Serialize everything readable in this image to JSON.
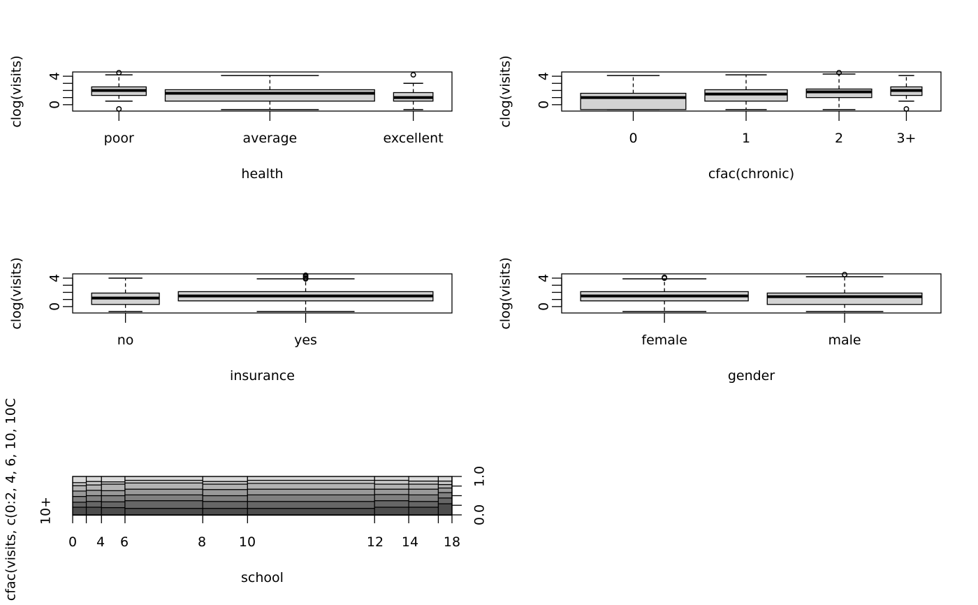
{
  "chart_data": [
    {
      "type": "boxplot",
      "xlabel": "health",
      "ylabel": "clog(visits)",
      "yticks": [
        0,
        4
      ],
      "ylim": [
        -0.9,
        4.6
      ],
      "categories": [
        "poor",
        "average",
        "excellent"
      ],
      "widths": [
        0.18,
        0.69,
        0.13
      ],
      "boxes": [
        {
          "whisker_low": 0.5,
          "q1": 1.3,
          "median": 2.0,
          "q3": 2.5,
          "whisker_high": 4.2,
          "outliers": [
            4.5,
            -0.6
          ]
        },
        {
          "whisker_low": -0.69,
          "q1": 0.5,
          "median": 1.6,
          "q3": 2.1,
          "whisker_high": 4.1,
          "outliers": []
        },
        {
          "whisker_low": -0.69,
          "q1": 0.5,
          "median": 1.0,
          "q3": 1.7,
          "whisker_high": 3.0,
          "outliers": [
            4.2
          ]
        }
      ]
    },
    {
      "type": "boxplot",
      "xlabel": "cfac(chronic)",
      "ylabel": "clog(visits)",
      "yticks": [
        0,
        4
      ],
      "ylim": [
        -0.9,
        4.6
      ],
      "categories": [
        "0",
        "1",
        "2",
        "3+"
      ],
      "widths": [
        0.37,
        0.29,
        0.23,
        0.11
      ],
      "boxes": [
        {
          "whisker_low": -0.69,
          "q1": -0.69,
          "median": 1.0,
          "q3": 1.6,
          "whisker_high": 4.1,
          "outliers": []
        },
        {
          "whisker_low": -0.69,
          "q1": 0.5,
          "median": 1.5,
          "q3": 2.1,
          "whisker_high": 4.2,
          "outliers": []
        },
        {
          "whisker_low": -0.69,
          "q1": 1.0,
          "median": 1.8,
          "q3": 2.2,
          "whisker_high": 4.3,
          "outliers": [
            4.5
          ]
        },
        {
          "whisker_low": 0.5,
          "q1": 1.3,
          "median": 2.0,
          "q3": 2.5,
          "whisker_high": 4.1,
          "outliers": [
            -0.6
          ]
        }
      ]
    },
    {
      "type": "boxplot",
      "xlabel": "insurance",
      "ylabel": "clog(visits)",
      "yticks": [
        0,
        4
      ],
      "ylim": [
        -0.9,
        4.6
      ],
      "categories": [
        "no",
        "yes"
      ],
      "widths": [
        0.21,
        0.79
      ],
      "boxes": [
        {
          "whisker_low": -0.69,
          "q1": 0.3,
          "median": 1.2,
          "q3": 1.9,
          "whisker_high": 4.0,
          "outliers": []
        },
        {
          "whisker_low": -0.69,
          "q1": 0.8,
          "median": 1.5,
          "q3": 2.1,
          "whisker_high": 3.9,
          "outliers": [
            3.9,
            4.0,
            4.2,
            4.4
          ]
        }
      ]
    },
    {
      "type": "boxplot",
      "xlabel": "gender",
      "ylabel": "clog(visits)",
      "yticks": [
        0,
        4
      ],
      "ylim": [
        -0.9,
        4.6
      ],
      "categories": [
        "female",
        "male"
      ],
      "widths": [
        0.52,
        0.48
      ],
      "boxes": [
        {
          "whisker_low": -0.69,
          "q1": 0.8,
          "median": 1.5,
          "q3": 2.1,
          "whisker_high": 3.9,
          "outliers": [
            4.0,
            4.1
          ]
        },
        {
          "whisker_low": -0.69,
          "q1": 0.3,
          "median": 1.4,
          "q3": 1.9,
          "whisker_high": 4.2,
          "outliers": [
            4.5
          ]
        }
      ]
    },
    {
      "type": "spineplot",
      "xlabel": "school",
      "ylabel": "cfac(visits, c(0:2, 4, 6, 10, 10C",
      "ylevel_label": "10+",
      "xticks": [
        "0",
        "4",
        "6",
        "8",
        "10",
        "12",
        "14",
        "18"
      ],
      "right_yticks": [
        "0.0",
        "1.0"
      ],
      "right_ytick_values": [
        0,
        0.25,
        0.5,
        0.75,
        1
      ],
      "n_levels": 7,
      "level_colors": [
        "#4d4d4d",
        "#666666",
        "#808080",
        "#999999",
        "#b3b3b3",
        "#c7c7c7",
        "#d9d9d9"
      ],
      "bins": [
        {
          "width": 0.036,
          "cum": [
            0.2,
            0.33,
            0.48,
            0.62,
            0.76,
            0.84,
            1.0
          ]
        },
        {
          "width": 0.04,
          "cum": [
            0.2,
            0.35,
            0.5,
            0.64,
            0.78,
            0.87,
            1.0
          ]
        },
        {
          "width": 0.062,
          "cum": [
            0.19,
            0.34,
            0.5,
            0.63,
            0.8,
            0.86,
            1.0
          ]
        },
        {
          "width": 0.205,
          "cum": [
            0.17,
            0.37,
            0.52,
            0.67,
            0.83,
            0.9,
            1.0
          ]
        },
        {
          "width": 0.118,
          "cum": [
            0.17,
            0.35,
            0.5,
            0.66,
            0.8,
            0.87,
            1.0
          ]
        },
        {
          "width": 0.335,
          "cum": [
            0.17,
            0.35,
            0.52,
            0.67,
            0.82,
            0.9,
            1.0
          ]
        },
        {
          "width": 0.09,
          "cum": [
            0.2,
            0.37,
            0.53,
            0.67,
            0.8,
            0.9,
            1.0
          ]
        },
        {
          "width": 0.078,
          "cum": [
            0.2,
            0.35,
            0.52,
            0.67,
            0.8,
            0.88,
            1.0
          ]
        },
        {
          "width": 0.036,
          "cum": [
            0.29,
            0.44,
            0.58,
            0.7,
            0.79,
            0.88,
            1.0
          ]
        }
      ]
    }
  ]
}
